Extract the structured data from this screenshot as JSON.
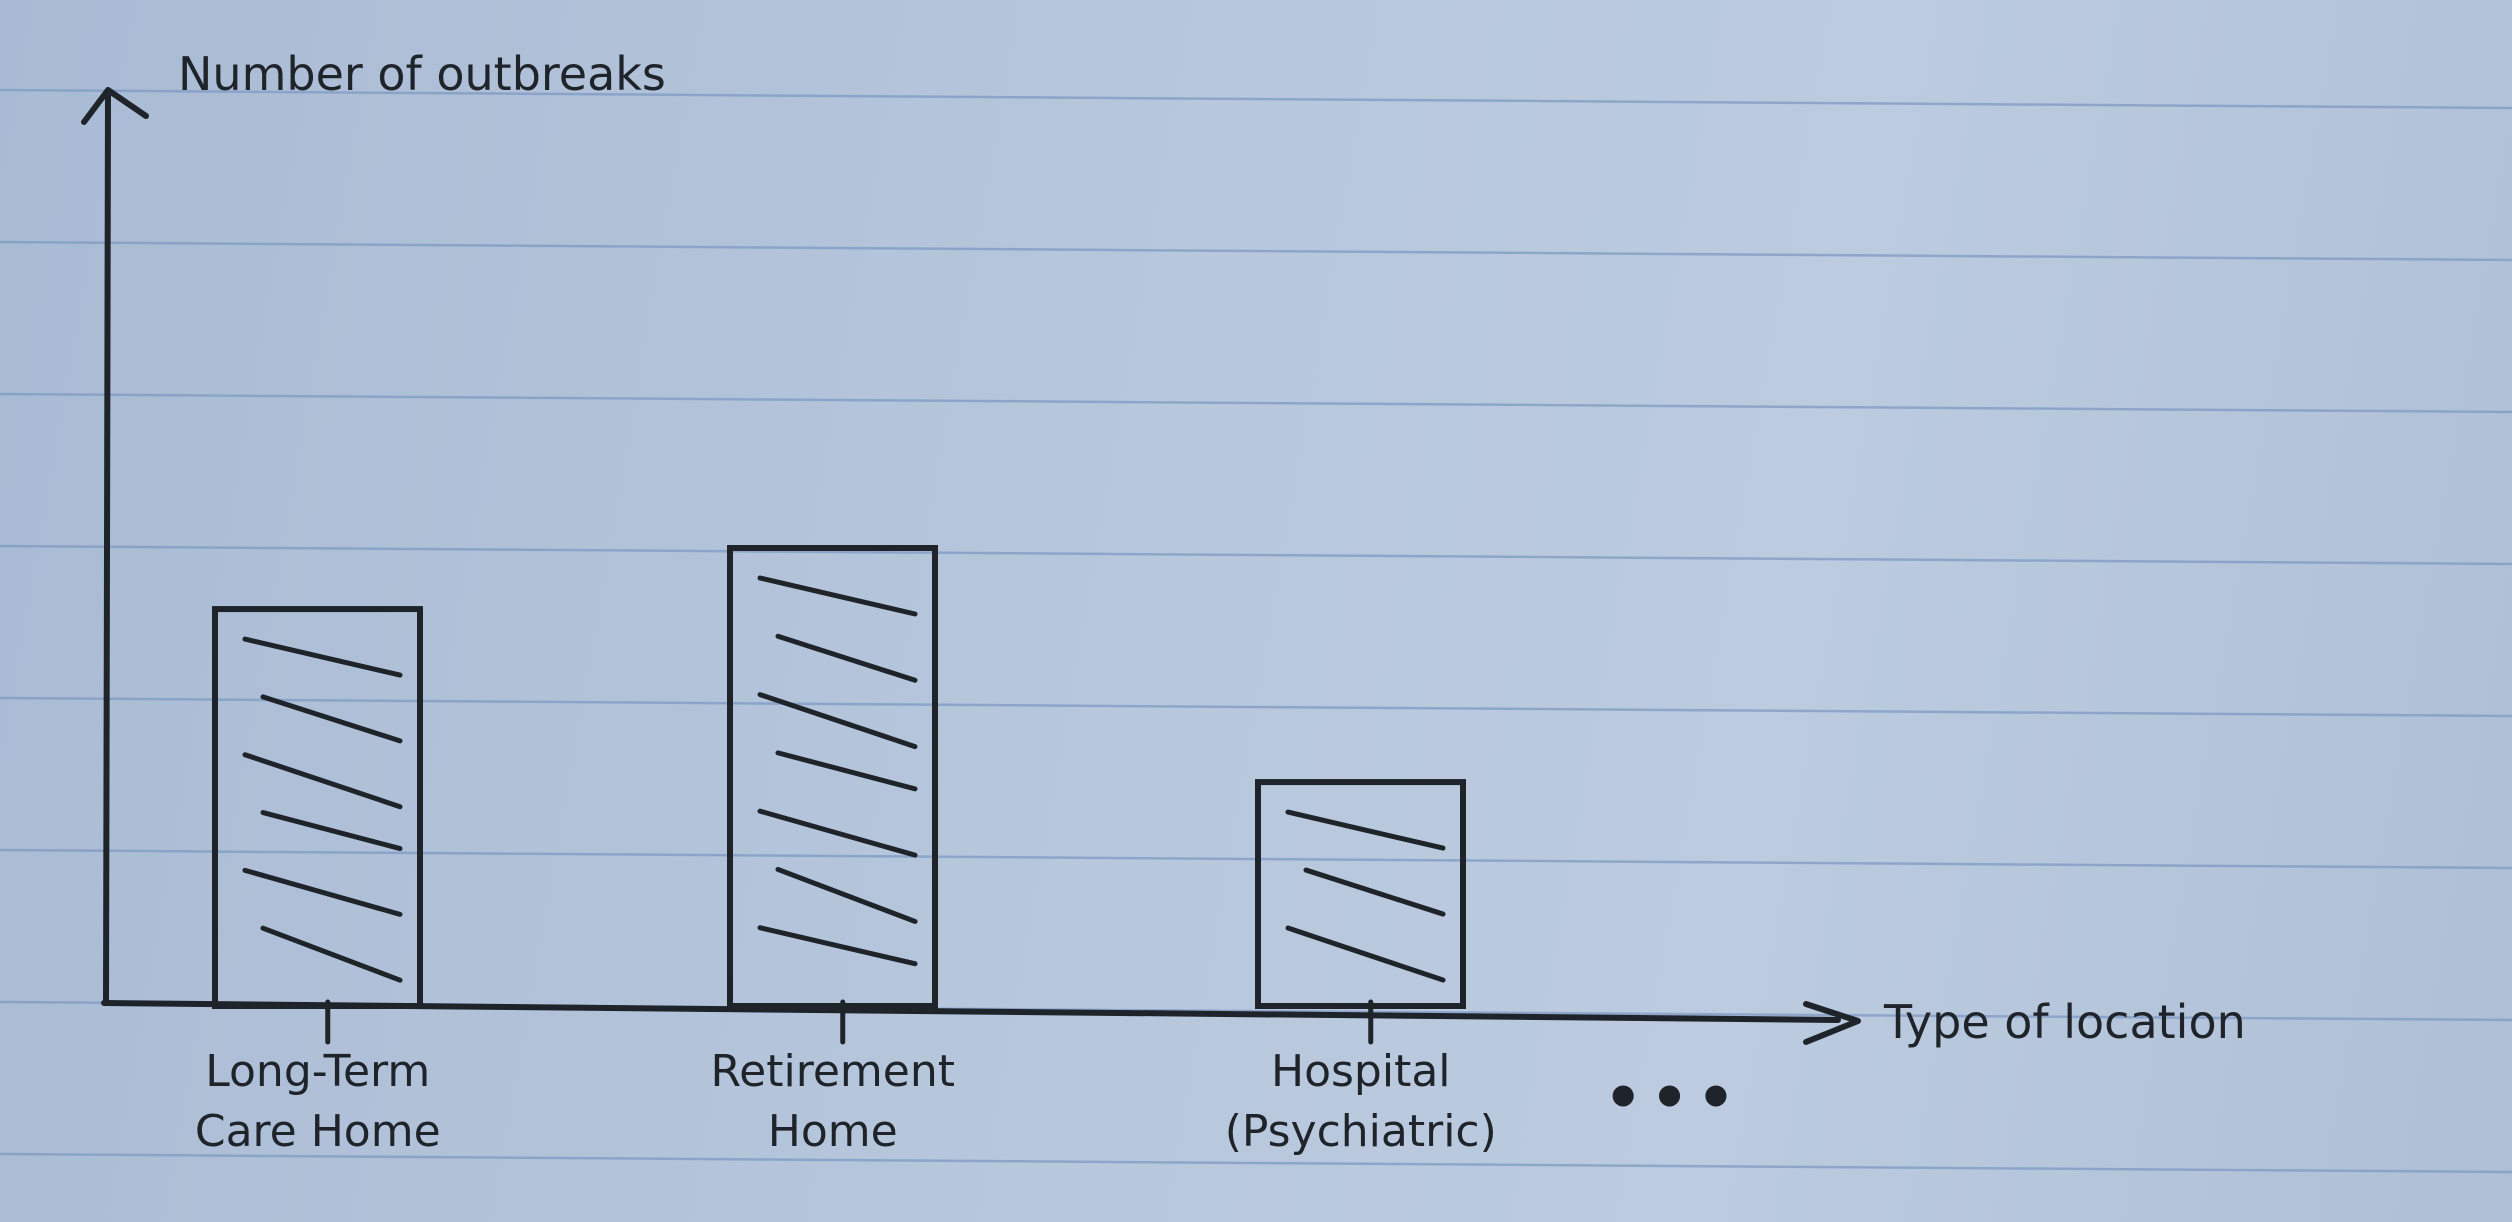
{
  "chart_data": {
    "type": "bar",
    "title": "",
    "xlabel": "Type of location",
    "ylabel": "Number of outbreaks",
    "categories": [
      [
        "Long-Term",
        "Care Home"
      ],
      [
        "Retirement",
        "Home"
      ],
      [
        "Hospital",
        "(Psychiatric)"
      ]
    ],
    "values": [
      3.9,
      4.5,
      2.2
    ],
    "ylim": [
      0,
      9
    ],
    "continuation": "•••",
    "bar_fill": "hatched",
    "grid": false,
    "legend": "none"
  },
  "colors": {
    "ink": "#1f242b",
    "paper": "#b7c7dc",
    "rule_lines": "#7f9ac4"
  }
}
